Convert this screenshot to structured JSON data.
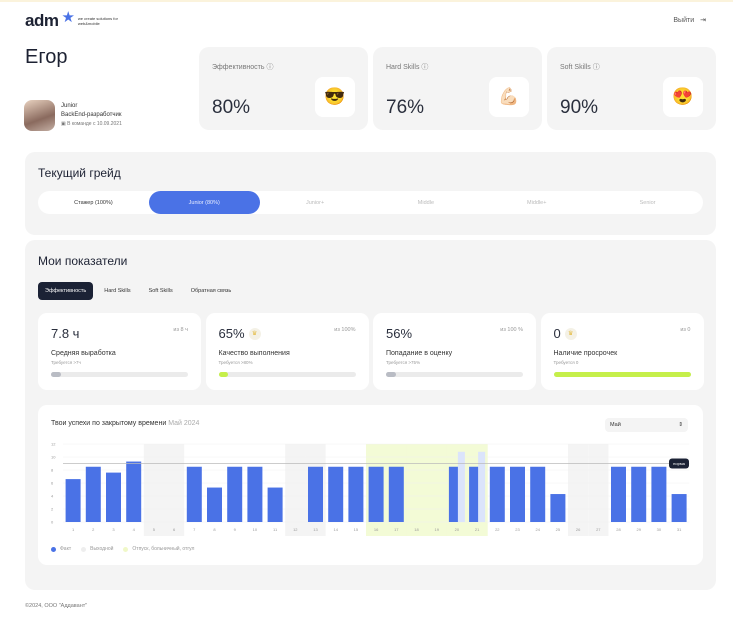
{
  "header": {
    "logo": "adm",
    "logo_tagline": "we create solutions for web&mobile",
    "exit_label": "Выйти"
  },
  "profile": {
    "name": "Егор",
    "grade": "Junior",
    "role": "BackEnd-разработчик",
    "in_team": "В команде с 10.09.2021"
  },
  "stats": [
    {
      "title": "Эффективность",
      "value": "80%",
      "emoji": "😎"
    },
    {
      "title": "Hard Skills",
      "value": "76%",
      "emoji": "💪🏻"
    },
    {
      "title": "Soft Skills",
      "value": "90%",
      "emoji": "😍"
    }
  ],
  "grade": {
    "title": "Текущий грейд",
    "levels": [
      "Стажер (100%)",
      "Junior (80%)",
      "Junior+",
      "Middle",
      "Middle+",
      "Senior"
    ],
    "current": 1
  },
  "indicators": {
    "title": "Мои показатели",
    "tabs": [
      "Эффективность",
      "Hard Skills",
      "Soft Skills",
      "Обратная связь"
    ],
    "active_tab": 0,
    "metrics": [
      {
        "value": "7.8 ч",
        "of": "из 8 ч",
        "label": "Средняя выработка",
        "req": "Требуется >7ч",
        "progress": 0.07,
        "color": "#b9bcc4",
        "crown": false
      },
      {
        "value": "65%",
        "of": "из 100%",
        "label": "Качество выполнения",
        "req": "Требуется >80%",
        "progress": 0.07,
        "color": "#c5ef4a",
        "crown": true
      },
      {
        "value": "56%",
        "of": "из 100 %",
        "label": "Попадание в оценку",
        "req": "Требуется >75%",
        "progress": 0.07,
        "color": "#b9bcc4",
        "crown": false
      },
      {
        "value": "0",
        "of": "из 0",
        "label": "Наличие просрочек",
        "req": "Требуется 0",
        "progress": 1,
        "color": "#c5ef4a",
        "crown": true
      }
    ]
  },
  "chart_section": {
    "title": "Твои успехи по закрытому времени",
    "period": "Май 2024",
    "month_select": "Май",
    "norm_label": "норма",
    "legend": [
      "Факт",
      "Выходной",
      "Отпуск, больничный, отгул"
    ]
  },
  "chart_data": {
    "type": "bar",
    "ylim": [
      0,
      12
    ],
    "yticks": [
      0,
      2,
      4,
      6,
      8,
      10,
      12
    ],
    "norm": 9,
    "categories": [
      "1",
      "2",
      "3",
      "4",
      "5",
      "6",
      "7",
      "8",
      "9",
      "10",
      "11",
      "12",
      "13",
      "14",
      "15",
      "16",
      "17",
      "18",
      "19",
      "20",
      "21",
      "22",
      "23",
      "24",
      "25",
      "26",
      "27",
      "28",
      "29",
      "30",
      "31"
    ],
    "series": [
      {
        "name": "Факт",
        "color": "#4a72e6",
        "values": [
          6.6,
          8.5,
          7.6,
          9.3,
          0,
          0,
          8.5,
          5.3,
          8.5,
          8.5,
          5.3,
          0,
          8.5,
          8.5,
          8.5,
          8.5,
          8.5,
          0,
          0,
          8.5,
          8.5,
          8.5,
          8.5,
          8.5,
          4.3,
          0,
          0,
          8.5,
          8.5,
          8.5,
          4.3
        ]
      },
      {
        "name": "extra",
        "color": "#dbe4fb",
        "values": [
          0,
          0,
          0,
          0,
          0,
          0,
          0,
          0,
          0,
          0,
          0,
          0,
          0,
          0,
          0,
          0,
          0,
          0,
          0,
          10.8,
          10.8,
          0,
          0,
          0,
          0,
          0,
          0,
          0,
          0,
          0,
          0
        ]
      }
    ],
    "weekends": [
      "5",
      "6",
      "12",
      "13",
      "26",
      "27"
    ],
    "vacation": [
      "16",
      "17",
      "18",
      "19",
      "20",
      "21"
    ],
    "colors": {
      "weekend": "#f4f4f4",
      "vacation": "#f3fbd6"
    }
  },
  "footer": "©2024, ООО \"Аддавант\""
}
